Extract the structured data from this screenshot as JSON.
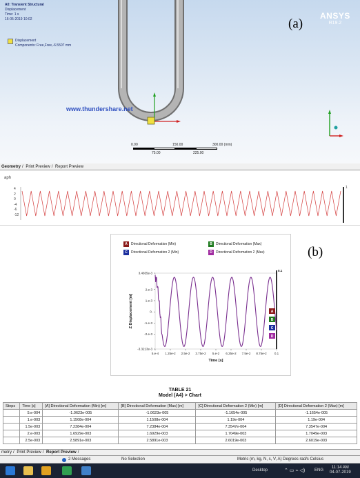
{
  "panel_a": {
    "label": "(a)",
    "info_lines": [
      "A0: Transient Structural",
      "Displacement",
      "Time: 1 s",
      "16-05-2019 10:02"
    ],
    "legend_line1": "Displacement",
    "legend_line2": "Components: Free,Free,-6.5507 mm",
    "brand": "ANSYS",
    "version": "R19.2",
    "watermark": "www.thundershare.net",
    "scale_top": [
      "0.00",
      "150.00",
      "300.00 (mm)"
    ],
    "scale_bottom": [
      "75.00",
      "225.00"
    ],
    "tabs": [
      "Geometry",
      "Print Preview",
      "Report Preview"
    ],
    "graph_title": "aph",
    "graph_y_ticks": [
      "4",
      "2",
      "0",
      "-4",
      "-6",
      "-12"
    ],
    "graph_end_label": "1"
  },
  "panel_b": {
    "label": "(b)",
    "legend": [
      {
        "key": "A",
        "name": "Directional Deformation (Min)",
        "color": "#8b1a1a"
      },
      {
        "key": "B",
        "name": "Directional Deformation (Max)",
        "color": "#1f7a1f"
      },
      {
        "key": "C",
        "name": "Directional Deformation 2 (Min)",
        "color": "#1c2f9e"
      },
      {
        "key": "D",
        "name": "Directional Deformation 2 (Max)",
        "color": "#a02ba0"
      }
    ],
    "table_title": "TABLE 21",
    "table_subtitle": "Model (A4) > Chart",
    "table_headers": [
      "Steps",
      "Time [s]",
      "[A] Directional Deformation (Min) [m]",
      "[B] Directional Deformation (Max) [m]",
      "[C] Directional Deformation 2 (Min) [m]",
      "[D] Directional Deformation 2 (Max) [m]"
    ],
    "table_rows": [
      [
        "",
        "5.e-004",
        "-1.0623e-005",
        "-1.0623e-005",
        "-1.1654e-005",
        "-1.1654e-005"
      ],
      [
        "",
        "1.e-003",
        "1.1508e-004",
        "1.1508e-004",
        "1.19e-004",
        "1.19e-004"
      ],
      [
        "",
        "1.5e-003",
        "7.2384e-004",
        "7.2384e-004",
        "7.3547e-004",
        "7.3547e-004"
      ],
      [
        "",
        "2.e-003",
        "1.6929e-003",
        "1.6929e-003",
        "1.7049e-003",
        "1.7049e-003"
      ],
      [
        "",
        "2.5e-003",
        "2.5891e-003",
        "2.5891e-003",
        "2.6019e-003",
        "2.6019e-003"
      ]
    ],
    "tabs": [
      "metry",
      "Print Preview",
      "Report Preview"
    ]
  },
  "chart_data": {
    "type": "line",
    "title": "",
    "xlabel": "Time [s]",
    "ylabel": "Z Displacement [m]",
    "x_ticks": [
      "5.e-4",
      "1.25e-2",
      "2.5e-2",
      "3.75e-2",
      "5.e-2",
      "6.25e-2",
      "7.5e-2",
      "8.75e-2",
      "0.1"
    ],
    "y_ticks": [
      "3.4655e-3",
      "2.e-3",
      "1.e-3",
      "0.",
      "-1.e-3",
      "-2.e-3",
      "-3.3213e-3"
    ],
    "xlim": [
      0.0005,
      0.1
    ],
    "ylim": [
      -0.0033213,
      0.0034655
    ],
    "top_right_label": "0.1",
    "waveform": {
      "amplitude": 0.0031,
      "period": 0.0157,
      "cycles_shown": 6
    },
    "series": [
      {
        "name": "Directional Deformation (Min)",
        "color": "#8b1a1a"
      },
      {
        "name": "Directional Deformation (Max)",
        "color": "#1f7a1f"
      },
      {
        "name": "Directional Deformation 2 (Min)",
        "color": "#1c2f9e"
      },
      {
        "name": "Directional Deformation 2 (Max)",
        "color": "#a02ba0"
      }
    ]
  },
  "statusbar": {
    "messages": "2 Messages",
    "selection": "No Selection",
    "units": "Metric (m, kg, N, s, V, A)   Degrees   rad/s   Celsius"
  },
  "taskbar": {
    "desktop": "Desktop",
    "lang": "ENG",
    "time": "11:14 AM",
    "date": "04-07-2019"
  },
  "colors": {
    "accent_red": "#d44040",
    "curve": "#7a2f8f",
    "taskbar": "#1a2233"
  }
}
